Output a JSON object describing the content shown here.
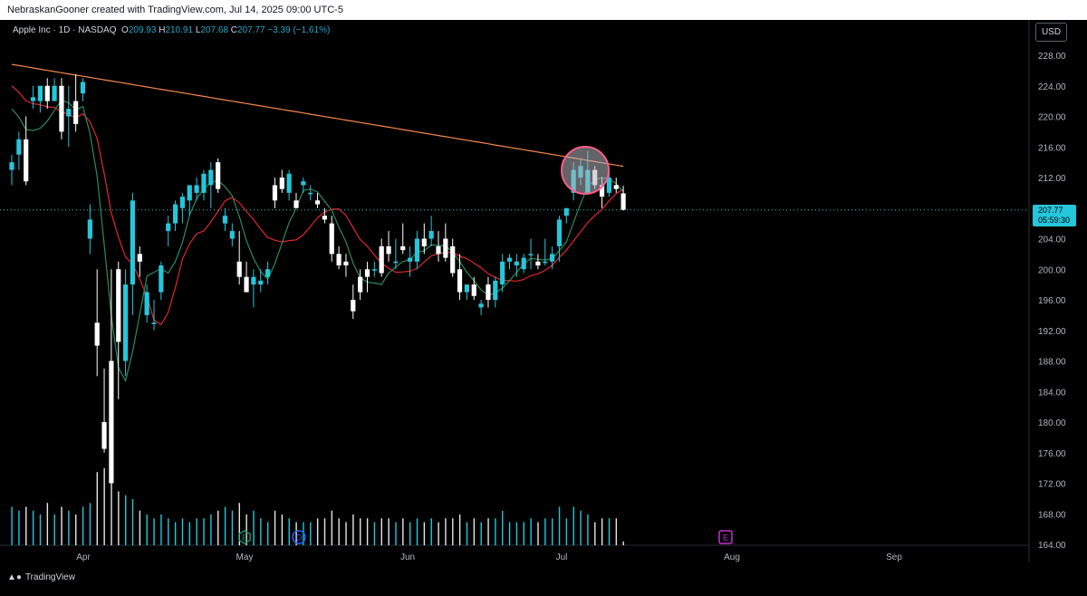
{
  "header": {
    "caption": "NebraskanGooner created with TradingView.com, Jul 14, 2025 09:00 UTC-5"
  },
  "legend": {
    "symbol": "Apple Inc · 1D · NASDAQ",
    "o_label": "O",
    "o_value": "209.93",
    "h_label": "H",
    "h_value": "210.91",
    "l_label": "L",
    "l_value": "207.68",
    "c_label": "C",
    "c_value": "207.77",
    "change": "−3.39 (−1.61%)"
  },
  "currency_button": "USD",
  "last_price": {
    "price": "207.77",
    "countdown": "05:59:30"
  },
  "footer": {
    "brand": "TradingView"
  },
  "colors": {
    "up": "#26c6da",
    "down": "#ffffff",
    "background": "#000000",
    "ma_long": "#f4874b",
    "ma_mid": "#e0282e",
    "ma_short": "#2e8b57",
    "highlight_circle": "#ff5c8a",
    "earnings_marker": "#1e8c6e",
    "dividend_marker": "#2962ff",
    "future_earnings_marker": "#c42fcf"
  },
  "chart_data": {
    "type": "candlestick",
    "yticks": [
      "228.00",
      "224.00",
      "220.00",
      "216.00",
      "212.00",
      "208.00",
      "204.00",
      "200.00",
      "196.00",
      "192.00",
      "188.00",
      "184.00",
      "180.00",
      "176.00",
      "172.00",
      "168.00",
      "164.00"
    ],
    "ylim": [
      163.5,
      231
    ],
    "xticks": [
      "Apr",
      "May",
      "Jun",
      "Jul",
      "Aug",
      "Sep"
    ],
    "markers": [
      {
        "label": "E",
        "kind": "earnings"
      },
      {
        "label": "D",
        "kind": "dividend"
      },
      {
        "label": "E",
        "kind": "earnings-upcoming"
      }
    ],
    "candles": [
      {
        "o": 213,
        "h": 215,
        "l": 211,
        "c": 214,
        "v": 0.5
      },
      {
        "o": 215,
        "h": 218,
        "l": 213,
        "c": 217,
        "v": 0.45
      },
      {
        "o": 217,
        "h": 220,
        "l": 211,
        "c": 211.5,
        "v": 0.5
      },
      {
        "o": 222,
        "h": 224,
        "l": 221,
        "c": 222.5,
        "v": 0.45
      },
      {
        "o": 222,
        "h": 224,
        "l": 220.5,
        "c": 224,
        "v": 0.4
      },
      {
        "o": 224,
        "h": 225,
        "l": 221,
        "c": 222,
        "v": 0.55
      },
      {
        "o": 222,
        "h": 225,
        "l": 222,
        "c": 224,
        "v": 0.4
      },
      {
        "o": 224,
        "h": 225,
        "l": 217,
        "c": 218,
        "v": 0.5
      },
      {
        "o": 220,
        "h": 224,
        "l": 216,
        "c": 221,
        "v": 0.45
      },
      {
        "o": 222,
        "h": 225.5,
        "l": 218,
        "c": 219,
        "v": 0.4
      },
      {
        "o": 223,
        "h": 225,
        "l": 222,
        "c": 224.5,
        "v": 0.5
      },
      {
        "o": 204,
        "h": 208.5,
        "l": 202,
        "c": 206.5,
        "v": 0.55
      },
      {
        "o": 193,
        "h": 200,
        "l": 186,
        "c": 190,
        "v": 0.95
      },
      {
        "o": 180,
        "h": 187,
        "l": 176,
        "c": 176.5,
        "v": 1.0
      },
      {
        "o": 188,
        "h": 200,
        "l": 172,
        "c": 172,
        "v": 0.9
      },
      {
        "o": 200,
        "h": 201,
        "l": 183,
        "c": 190.5,
        "v": 0.7
      },
      {
        "o": 188,
        "h": 200,
        "l": 186,
        "c": 198,
        "v": 0.65
      },
      {
        "o": 198,
        "h": 210,
        "l": 194,
        "c": 209,
        "v": 0.6
      },
      {
        "o": 202,
        "h": 203,
        "l": 199,
        "c": 201,
        "v": 0.45
      },
      {
        "o": 194,
        "h": 198,
        "l": 193,
        "c": 197,
        "v": 0.4
      },
      {
        "o": 193,
        "h": 196,
        "l": 192,
        "c": 193,
        "v": 0.35
      },
      {
        "o": 197,
        "h": 201,
        "l": 196,
        "c": 200.5,
        "v": 0.4
      },
      {
        "o": 205,
        "h": 207,
        "l": 203,
        "c": 206,
        "v": 0.35
      },
      {
        "o": 206,
        "h": 209,
        "l": 205,
        "c": 208.5,
        "v": 0.3
      },
      {
        "o": 208,
        "h": 210,
        "l": 206,
        "c": 209.5,
        "v": 0.35
      },
      {
        "o": 209,
        "h": 211,
        "l": 207,
        "c": 211,
        "v": 0.3
      },
      {
        "o": 210,
        "h": 212,
        "l": 209,
        "c": 211,
        "v": 0.35
      },
      {
        "o": 210,
        "h": 213,
        "l": 209,
        "c": 212.5,
        "v": 0.35
      },
      {
        "o": 211,
        "h": 214,
        "l": 208,
        "c": 213,
        "v": 0.4
      },
      {
        "o": 214,
        "h": 214.5,
        "l": 210,
        "c": 210.5,
        "v": 0.45
      },
      {
        "o": 206,
        "h": 208,
        "l": 205,
        "c": 207,
        "v": 0.5
      },
      {
        "o": 204,
        "h": 206,
        "l": 203,
        "c": 205,
        "v": 0.45
      },
      {
        "o": 201,
        "h": 205,
        "l": 198,
        "c": 199,
        "v": 0.55
      },
      {
        "o": 199,
        "h": 201,
        "l": 197,
        "c": 197,
        "v": 0.4
      },
      {
        "o": 198,
        "h": 200,
        "l": 195,
        "c": 199,
        "v": 0.45
      },
      {
        "o": 198,
        "h": 200,
        "l": 197,
        "c": 198.5,
        "v": 0.35
      },
      {
        "o": 199,
        "h": 201,
        "l": 198,
        "c": 200,
        "v": 0.3
      },
      {
        "o": 211,
        "h": 212,
        "l": 208,
        "c": 209,
        "v": 0.45
      },
      {
        "o": 212,
        "h": 213,
        "l": 210,
        "c": 210.5,
        "v": 0.4
      },
      {
        "o": 210,
        "h": 213,
        "l": 209,
        "c": 212.5,
        "v": 0.35
      },
      {
        "o": 209,
        "h": 210,
        "l": 208,
        "c": 208,
        "v": 0.3
      },
      {
        "o": 211,
        "h": 212,
        "l": 210,
        "c": 211.5,
        "v": 0.3
      },
      {
        "o": 210,
        "h": 211,
        "l": 209,
        "c": 210,
        "v": 0.3
      },
      {
        "o": 209,
        "h": 210,
        "l": 208,
        "c": 208.5,
        "v": 0.35
      },
      {
        "o": 207,
        "h": 208,
        "l": 206,
        "c": 206.5,
        "v": 0.35
      },
      {
        "o": 206,
        "h": 207,
        "l": 201,
        "c": 202,
        "v": 0.45
      },
      {
        "o": 202,
        "h": 203,
        "l": 200,
        "c": 200.5,
        "v": 0.35
      },
      {
        "o": 201,
        "h": 202,
        "l": 199,
        "c": 200.5,
        "v": 0.3
      },
      {
        "o": 196,
        "h": 198,
        "l": 193.5,
        "c": 194.5,
        "v": 0.4
      },
      {
        "o": 199,
        "h": 200,
        "l": 196,
        "c": 197,
        "v": 0.35
      },
      {
        "o": 200,
        "h": 201,
        "l": 197,
        "c": 199,
        "v": 0.35
      },
      {
        "o": 200,
        "h": 201,
        "l": 199,
        "c": 200,
        "v": 0.3
      },
      {
        "o": 203,
        "h": 204,
        "l": 199,
        "c": 199.5,
        "v": 0.35
      },
      {
        "o": 203,
        "h": 205,
        "l": 201,
        "c": 202,
        "v": 0.35
      },
      {
        "o": 201,
        "h": 204,
        "l": 200,
        "c": 201,
        "v": 0.3
      },
      {
        "o": 203,
        "h": 206,
        "l": 202,
        "c": 202.5,
        "v": 0.35
      },
      {
        "o": 201,
        "h": 203,
        "l": 199,
        "c": 201.5,
        "v": 0.3
      },
      {
        "o": 201,
        "h": 205,
        "l": 200,
        "c": 204,
        "v": 0.35
      },
      {
        "o": 204,
        "h": 206,
        "l": 202,
        "c": 203,
        "v": 0.3
      },
      {
        "o": 204,
        "h": 207,
        "l": 203,
        "c": 205,
        "v": 0.35
      },
      {
        "o": 203,
        "h": 205,
        "l": 201,
        "c": 202,
        "v": 0.3
      },
      {
        "o": 204,
        "h": 206,
        "l": 201,
        "c": 201.5,
        "v": 0.35
      },
      {
        "o": 203,
        "h": 204,
        "l": 199,
        "c": 199.5,
        "v": 0.35
      },
      {
        "o": 200,
        "h": 202,
        "l": 196,
        "c": 197,
        "v": 0.4
      },
      {
        "o": 197,
        "h": 198,
        "l": 196,
        "c": 198,
        "v": 0.3
      },
      {
        "o": 198,
        "h": 199,
        "l": 196,
        "c": 196.5,
        "v": 0.35
      },
      {
        "o": 195,
        "h": 196,
        "l": 194,
        "c": 195.5,
        "v": 0.3
      },
      {
        "o": 198,
        "h": 199,
        "l": 195,
        "c": 196,
        "v": 0.35
      },
      {
        "o": 196,
        "h": 199,
        "l": 195,
        "c": 198.5,
        "v": 0.35
      },
      {
        "o": 198,
        "h": 202,
        "l": 197,
        "c": 201,
        "v": 0.45
      },
      {
        "o": 201,
        "h": 202,
        "l": 200,
        "c": 201.5,
        "v": 0.3
      },
      {
        "o": 200.5,
        "h": 202,
        "l": 199,
        "c": 201,
        "v": 0.3
      },
      {
        "o": 200,
        "h": 202,
        "l": 199.5,
        "c": 201.5,
        "v": 0.3
      },
      {
        "o": 202,
        "h": 204,
        "l": 200,
        "c": 202,
        "v": 0.35
      },
      {
        "o": 201,
        "h": 202,
        "l": 200,
        "c": 200.5,
        "v": 0.3
      },
      {
        "o": 201,
        "h": 204,
        "l": 200.5,
        "c": 201,
        "v": 0.35
      },
      {
        "o": 201,
        "h": 203,
        "l": 200,
        "c": 202,
        "v": 0.35
      },
      {
        "o": 203,
        "h": 207,
        "l": 201,
        "c": 206.5,
        "v": 0.5
      },
      {
        "o": 207,
        "h": 208,
        "l": 206,
        "c": 208,
        "v": 0.35
      },
      {
        "o": 210,
        "h": 214,
        "l": 209,
        "c": 213,
        "v": 0.5
      },
      {
        "o": 212,
        "h": 214.5,
        "l": 211,
        "c": 213.5,
        "v": 0.45
      },
      {
        "o": 210,
        "h": 215.5,
        "l": 210,
        "c": 213,
        "v": 0.4
      },
      {
        "o": 213,
        "h": 213.5,
        "l": 210.5,
        "c": 211,
        "v": 0.3
      },
      {
        "o": 211,
        "h": 212,
        "l": 208,
        "c": 209.5,
        "v": 0.35
      },
      {
        "o": 210,
        "h": 213,
        "l": 209.5,
        "c": 212,
        "v": 0.35
      },
      {
        "o": 211,
        "h": 212,
        "l": 210,
        "c": 210.5,
        "v": 0.35
      },
      {
        "o": 209.93,
        "h": 210.91,
        "l": 207.68,
        "c": 207.77,
        "v": 0.05
      }
    ]
  }
}
